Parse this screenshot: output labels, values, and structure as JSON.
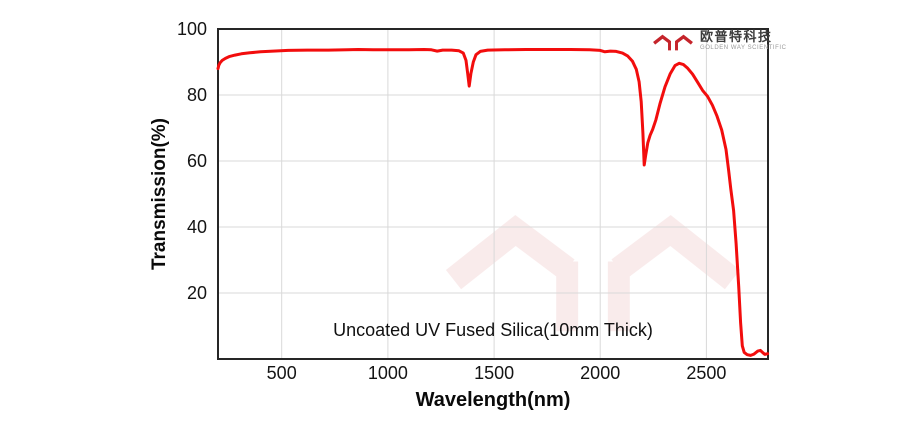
{
  "brand": {
    "name_cn": "欧普特科技",
    "name_en": "GOLDEN WAY SCIENTIFIC",
    "logo_color": "#c5242b"
  },
  "chart_data": {
    "type": "line",
    "title": "Uncoated UV Fused Silica(10mm Thick)",
    "xlabel": "Wavelength(nm)",
    "ylabel": "Transmission(%)",
    "xlim": [
      200,
      2790
    ],
    "ylim": [
      0,
      100
    ],
    "x_ticks": [
      500,
      1000,
      1500,
      2000,
      2500
    ],
    "y_ticks": [
      20,
      40,
      60,
      80,
      100
    ],
    "grid": true,
    "legend_position": "none",
    "line_color": "#f20d0d",
    "grid_color": "#d9d9d9",
    "series": [
      {
        "name": "Transmission",
        "points": [
          [
            200,
            88.0
          ],
          [
            204,
            89.0
          ],
          [
            210,
            89.8
          ],
          [
            220,
            90.5
          ],
          [
            235,
            91.1
          ],
          [
            255,
            91.7
          ],
          [
            280,
            92.1
          ],
          [
            310,
            92.5
          ],
          [
            350,
            92.8
          ],
          [
            400,
            93.1
          ],
          [
            460,
            93.3
          ],
          [
            530,
            93.5
          ],
          [
            620,
            93.6
          ],
          [
            720,
            93.6
          ],
          [
            810,
            93.7
          ],
          [
            860,
            93.8
          ],
          [
            930,
            93.7
          ],
          [
            1020,
            93.7
          ],
          [
            1100,
            93.7
          ],
          [
            1170,
            93.8
          ],
          [
            1205,
            93.7
          ],
          [
            1232,
            93.3
          ],
          [
            1258,
            93.6
          ],
          [
            1300,
            93.6
          ],
          [
            1335,
            93.4
          ],
          [
            1355,
            92.7
          ],
          [
            1368,
            90.5
          ],
          [
            1376,
            86.5
          ],
          [
            1383,
            82.7
          ],
          [
            1391,
            86.5
          ],
          [
            1402,
            90.0
          ],
          [
            1415,
            92.2
          ],
          [
            1435,
            93.2
          ],
          [
            1470,
            93.6
          ],
          [
            1550,
            93.7
          ],
          [
            1650,
            93.8
          ],
          [
            1750,
            93.8
          ],
          [
            1860,
            93.8
          ],
          [
            1950,
            93.7
          ],
          [
            2000,
            93.5
          ],
          [
            2022,
            93.1
          ],
          [
            2048,
            93.3
          ],
          [
            2075,
            93.2
          ],
          [
            2105,
            92.7
          ],
          [
            2130,
            91.8
          ],
          [
            2152,
            90.2
          ],
          [
            2170,
            87.8
          ],
          [
            2183,
            84.0
          ],
          [
            2193,
            78.0
          ],
          [
            2201,
            68.5
          ],
          [
            2207,
            58.8
          ],
          [
            2214,
            61.8
          ],
          [
            2224,
            65.5
          ],
          [
            2235,
            67.8
          ],
          [
            2247,
            69.6
          ],
          [
            2262,
            72.5
          ],
          [
            2282,
            77.5
          ],
          [
            2305,
            82.5
          ],
          [
            2330,
            86.5
          ],
          [
            2352,
            88.9
          ],
          [
            2372,
            89.6
          ],
          [
            2392,
            89.2
          ],
          [
            2412,
            88.1
          ],
          [
            2435,
            86.3
          ],
          [
            2458,
            83.9
          ],
          [
            2482,
            81.4
          ],
          [
            2505,
            79.6
          ],
          [
            2528,
            76.9
          ],
          [
            2550,
            73.6
          ],
          [
            2572,
            69.4
          ],
          [
            2592,
            63.5
          ],
          [
            2605,
            57.0
          ],
          [
            2615,
            51.5
          ],
          [
            2628,
            45.0
          ],
          [
            2640,
            35.0
          ],
          [
            2652,
            22.0
          ],
          [
            2661,
            11.0
          ],
          [
            2669,
            4.0
          ],
          [
            2678,
            2.0
          ],
          [
            2692,
            1.3
          ],
          [
            2708,
            1.1
          ],
          [
            2724,
            1.5
          ],
          [
            2742,
            2.4
          ],
          [
            2754,
            2.6
          ],
          [
            2764,
            2.0
          ],
          [
            2775,
            1.4
          ],
          [
            2788,
            1.6
          ]
        ]
      }
    ]
  }
}
